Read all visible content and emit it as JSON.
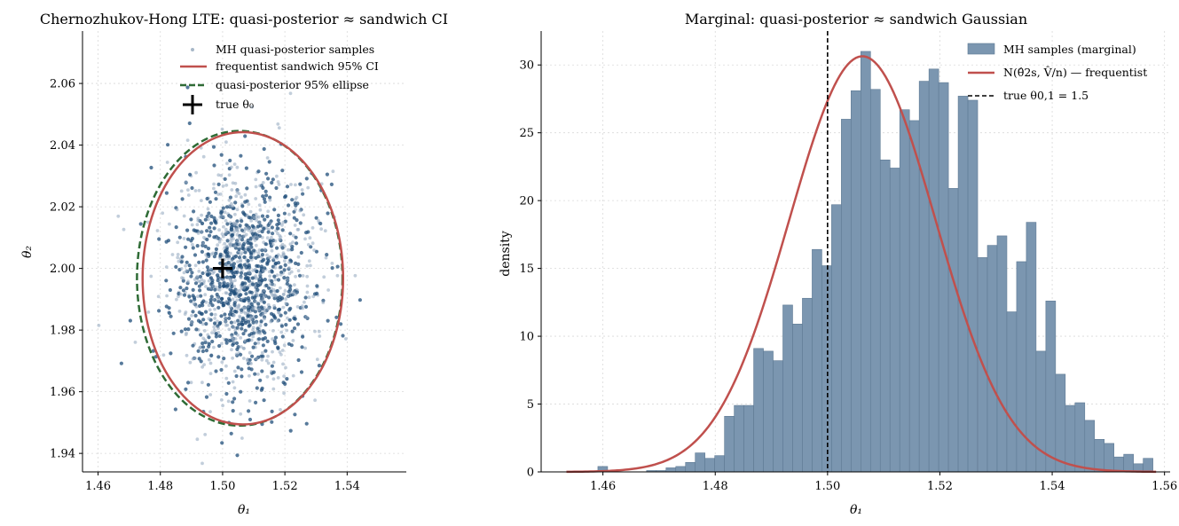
{
  "chart_data": [
    {
      "type": "scatter",
      "title": "Chernozhukov-Hong LTE: quasi-posterior ≈ sandwich CI",
      "xlabel": "θ₁",
      "ylabel": "θ₂",
      "xlim": [
        1.455,
        1.559
      ],
      "ylim": [
        1.934,
        2.077
      ],
      "x_ticks": [
        "1.46",
        "1.48",
        "1.50",
        "1.52",
        "1.54"
      ],
      "y_ticks": [
        "1.94",
        "1.96",
        "1.98",
        "2.00",
        "2.02",
        "2.04",
        "2.06"
      ],
      "grid": true,
      "legend_position": "top-right",
      "legend": [
        "MH quasi-posterior samples",
        "frequentist sandwich 95% CI",
        "quasi-posterior 95% ellipse",
        "true θ₀"
      ],
      "series": [
        {
          "name": "MH quasi-posterior samples",
          "kind": "points",
          "center": [
            1.5065,
            1.9965
          ],
          "sd": [
            0.0115,
            0.0177
          ],
          "n": 1500,
          "color": "#1f4e79"
        },
        {
          "name": "frequentist sandwich 95% CI",
          "kind": "ellipse",
          "center": [
            1.5065,
            1.9968
          ],
          "semi_axes": [
            0.0322,
            0.0474
          ],
          "color": "#c0504d",
          "style": "solid"
        },
        {
          "name": "quasi-posterior 95% ellipse",
          "kind": "ellipse",
          "center": [
            1.5055,
            1.9968
          ],
          "semi_axes": [
            0.033,
            0.0478
          ],
          "color": "#2e6b35",
          "style": "dashed"
        },
        {
          "name": "true θ₀",
          "kind": "marker",
          "x": 1.5,
          "y": 2.0,
          "color": "#000000"
        }
      ]
    },
    {
      "type": "bar",
      "title": "Marginal: quasi-posterior ≈ sandwich Gaussian",
      "xlabel": "θ₁",
      "ylabel": "density",
      "xlim": [
        1.449,
        1.561
      ],
      "ylim": [
        0,
        32.5
      ],
      "x_ticks": [
        "1.46",
        "1.48",
        "1.50",
        "1.52",
        "1.54",
        "1.56"
      ],
      "y_ticks": [
        "0",
        "5",
        "10",
        "15",
        "20",
        "25",
        "30"
      ],
      "grid": true,
      "legend_position": "top-right",
      "legend": [
        "MH samples (marginal)",
        "N(θ̂2s, V̂/n) — frequentist",
        "true θ0,1 = 1.5"
      ],
      "histogram": {
        "bin_start": 1.4591,
        "bin_width": 0.001734,
        "values": [
          0.4,
          0,
          0,
          0,
          0,
          0.1,
          0.1,
          0.3,
          0.4,
          0.7,
          1.4,
          1.0,
          1.2,
          4.1,
          4.9,
          4.9,
          9.1,
          8.9,
          8.2,
          12.3,
          10.9,
          12.8,
          16.4,
          15.2,
          19.7,
          26.0,
          28.1,
          31.0,
          28.2,
          23.0,
          22.4,
          26.7,
          25.9,
          28.8,
          29.7,
          28.7,
          20.9,
          27.7,
          27.4,
          15.8,
          16.7,
          17.4,
          11.8,
          15.5,
          18.4,
          8.9,
          12.6,
          7.2,
          4.9,
          5.1,
          3.8,
          2.4,
          2.1,
          1.1,
          1.3,
          0.6,
          1.0
        ],
        "color": "#7b96b0"
      },
      "gaussian": {
        "mean": 1.5062,
        "sd": 0.01302,
        "x_range": [
          1.4535,
          1.5585
        ],
        "color": "#c0504d"
      },
      "vline": {
        "x": 1.5,
        "style": "dashed",
        "color": "#000000"
      }
    }
  ]
}
